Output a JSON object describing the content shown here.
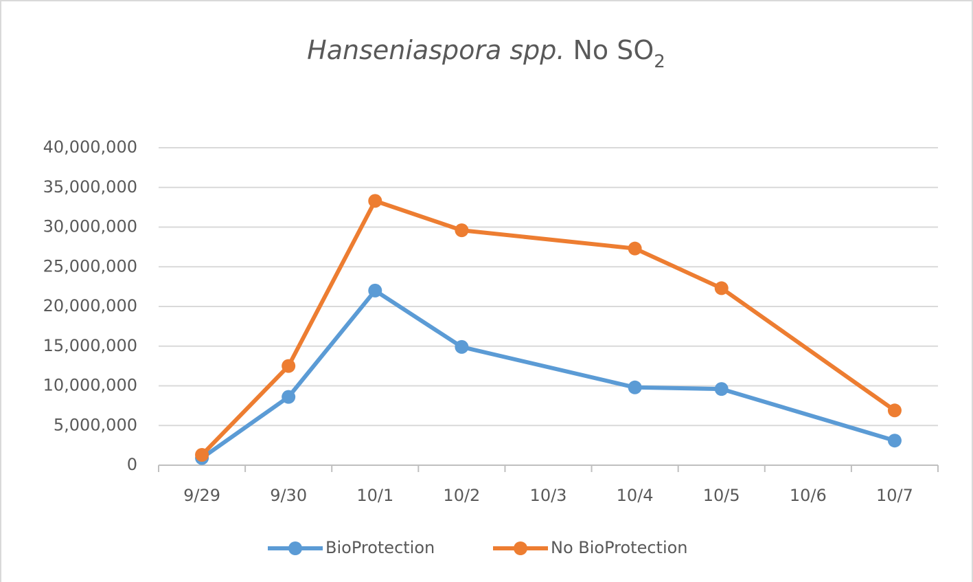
{
  "chart_data": {
    "type": "line",
    "title_parts": [
      {
        "text": "Hanseniaspora spp.",
        "style": "italic"
      },
      {
        "text": "No SO",
        "style": "normal"
      },
      {
        "text": "2",
        "style": "subscript"
      }
    ],
    "categories": [
      "9/29",
      "9/30",
      "10/1",
      "10/2",
      "10/3",
      "10/4",
      "10/5",
      "10/6",
      "10/7"
    ],
    "series": [
      {
        "name": "BioProtection",
        "color": "#5b9bd5",
        "values": [
          900000,
          8600000,
          22000000,
          14900000,
          null,
          9800000,
          9600000,
          null,
          3100000
        ]
      },
      {
        "name": "No BioProtection",
        "color": "#ed7d31",
        "values": [
          1300000,
          12500000,
          33300000,
          29600000,
          null,
          27300000,
          22300000,
          null,
          6900000
        ]
      }
    ],
    "span_gaps": true,
    "ylim": [
      0,
      40000000
    ],
    "yticks": [
      0,
      {
        "value": 5000000,
        "label": "5,000,000"
      },
      {
        "value": 10000000,
        "label": "10,000,000"
      },
      {
        "value": 15000000,
        "label": "15,000,000"
      },
      {
        "value": 20000000,
        "label": "20,000,000"
      },
      {
        "value": 25000000,
        "label": "25,000,000"
      },
      {
        "value": 30000000,
        "label": "30,000,000"
      },
      {
        "value": 35000000,
        "label": "35,000,000"
      },
      {
        "value": 40000000,
        "label": "40,000,000"
      }
    ],
    "grid": true,
    "legend": "bottom"
  }
}
